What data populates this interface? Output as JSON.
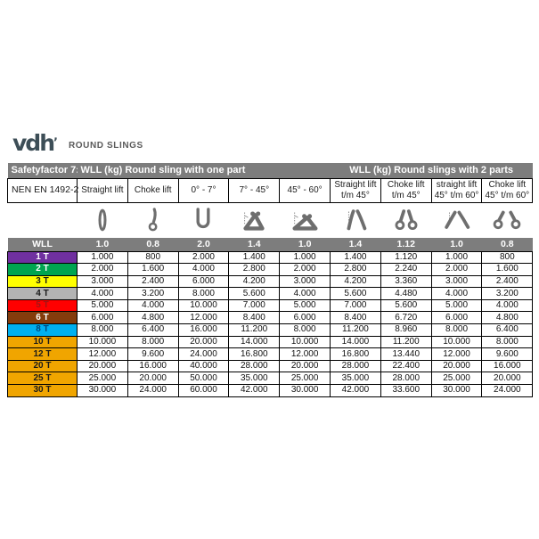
{
  "logo": {
    "brand": "vdh",
    "tick": "ʼ",
    "subtitle": "ROUND SLINGS"
  },
  "table": {
    "top_header": {
      "safetyfactor": "Safetyfactor 7:1",
      "one_part": "WLL (kg) Round sling with one part",
      "two_parts": "WLL (kg) Round slings with 2 parts"
    },
    "column_headers": [
      "NEN EN 1492-2",
      "Straight lift",
      "Choke lift",
      "0° - 7°",
      "7° - 45°",
      "45° - 60°",
      "Straight lift\nt/m 45°",
      "Choke lift\nt/m 45°",
      "straight lift\n45° t/m 60°",
      "Choke lift\n45° t/m 60°"
    ],
    "factor_row": {
      "label": "WLL",
      "factors": [
        "1.0",
        "0.8",
        "2.0",
        "1.4",
        "1.0",
        "1.4",
        "1.12",
        "1.0",
        "0.8"
      ]
    },
    "rows": [
      {
        "wll": "1 T",
        "color": "#7030a0",
        "text_color": "#ffffff",
        "values": [
          "1.000",
          "800",
          "2.000",
          "1.400",
          "1.000",
          "1.400",
          "1.120",
          "1.000",
          "800"
        ]
      },
      {
        "wll": "2 T",
        "color": "#00a550",
        "text_color": "#ffffff",
        "values": [
          "2.000",
          "1.600",
          "4.000",
          "2.800",
          "2.000",
          "2.800",
          "2.240",
          "2.000",
          "1.600"
        ]
      },
      {
        "wll": "3 T",
        "color": "#ffff00",
        "text_color": "#1a1a1a",
        "values": [
          "3.000",
          "2.400",
          "6.000",
          "4.200",
          "3.000",
          "4.200",
          "3.360",
          "3.000",
          "2.400"
        ]
      },
      {
        "wll": "4 T",
        "color": "#b3b3b3",
        "text_color": "#1a1a1a",
        "values": [
          "4.000",
          "3.200",
          "8.000",
          "5.600",
          "4.000",
          "5.600",
          "4.480",
          "4.000",
          "3.200"
        ]
      },
      {
        "wll": "5 T",
        "color": "#ff0000",
        "text_color": "#a31515",
        "values": [
          "5.000",
          "4.000",
          "10.000",
          "7.000",
          "5.000",
          "7.000",
          "5.600",
          "5.000",
          "4.000"
        ]
      },
      {
        "wll": "6 T",
        "color": "#843c0c",
        "text_color": "#ffffff",
        "values": [
          "6.000",
          "4.800",
          "12.000",
          "8.400",
          "6.000",
          "8.400",
          "6.720",
          "6.000",
          "4.800"
        ]
      },
      {
        "wll": "8 T",
        "color": "#00b0f0",
        "text_color": "#00477c",
        "values": [
          "8.000",
          "6.400",
          "16.000",
          "11.200",
          "8.000",
          "11.200",
          "8.960",
          "8.000",
          "6.400"
        ]
      },
      {
        "wll": "10 T",
        "color": "#f0a500",
        "text_color": "#1a1a1a",
        "values": [
          "10.000",
          "8.000",
          "20.000",
          "14.000",
          "10.000",
          "14.000",
          "11.200",
          "10.000",
          "8.000"
        ]
      },
      {
        "wll": "12 T",
        "color": "#f0a500",
        "text_color": "#1a1a1a",
        "values": [
          "12.000",
          "9.600",
          "24.000",
          "16.800",
          "12.000",
          "16.800",
          "13.440",
          "12.000",
          "9.600"
        ]
      },
      {
        "wll": "20 T",
        "color": "#f0a500",
        "text_color": "#1a1a1a",
        "values": [
          "20.000",
          "16.000",
          "40.000",
          "28.000",
          "20.000",
          "28.000",
          "22.400",
          "20.000",
          "16.000"
        ]
      },
      {
        "wll": "25 T",
        "color": "#f0a500",
        "text_color": "#1a1a1a",
        "values": [
          "25.000",
          "20.000",
          "50.000",
          "35.000",
          "25.000",
          "35.000",
          "28.000",
          "25.000",
          "20.000"
        ]
      },
      {
        "wll": "30 T",
        "color": "#f0a500",
        "text_color": "#1a1a1a",
        "values": [
          "30.000",
          "24.000",
          "60.000",
          "42.000",
          "30.000",
          "42.000",
          "33.600",
          "30.000",
          "24.000"
        ]
      }
    ]
  }
}
